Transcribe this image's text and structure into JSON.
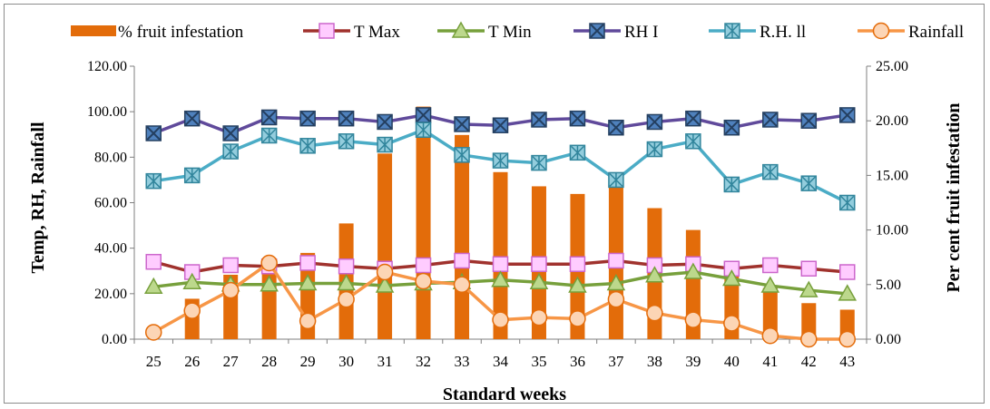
{
  "chart_data": {
    "type": "bar+line",
    "xlabel": "Standard weeks",
    "ylabel_left": "Temp, RH, Rainfall",
    "ylabel_right": "Per cent fruit infestation",
    "ylim_left": [
      0,
      120
    ],
    "ylim_right": [
      0,
      25
    ],
    "y_ticks_left": [
      "0.00",
      "20.00",
      "40.00",
      "60.00",
      "80.00",
      "100.00",
      "120.00"
    ],
    "y_ticks_right": [
      "0.00",
      "5.00",
      "10.00",
      "15.00",
      "20.00",
      "25.00"
    ],
    "grid": false,
    "legend_position": "top",
    "categories": [
      "25",
      "26",
      "27",
      "28",
      "29",
      "30",
      "31",
      "32",
      "33",
      "34",
      "35",
      "36",
      "37",
      "38",
      "39",
      "40",
      "41",
      "42",
      "43"
    ],
    "bars": {
      "name": "% fruit infestation",
      "axis": "right",
      "color": "#e36c0a",
      "values": [
        0,
        3.7,
        5.9,
        7.1,
        7.9,
        10.6,
        17.0,
        21.3,
        18.7,
        15.3,
        14.0,
        13.3,
        14.3,
        12.0,
        10.0,
        6.9,
        4.7,
        3.3,
        2.7
      ]
    },
    "series": [
      {
        "name": "T Max",
        "axis": "left",
        "color": "#a0322d",
        "markerFill": "#ffccff",
        "markerStroke": "#cc66cc",
        "marker": "square",
        "values": [
          34.0,
          29.5,
          32.5,
          32.0,
          33.5,
          32.0,
          31.0,
          32.5,
          34.5,
          33.0,
          33.0,
          33.0,
          34.5,
          32.5,
          33.0,
          31.0,
          32.5,
          31.0,
          29.5
        ]
      },
      {
        "name": "T Min",
        "axis": "left",
        "color": "#77a03c",
        "markerFill": "#bcd88c",
        "markerStroke": "#77a03c",
        "marker": "triangle",
        "values": [
          23.0,
          25.0,
          24.0,
          24.0,
          24.5,
          24.5,
          23.5,
          24.5,
          25.0,
          26.0,
          25.0,
          23.5,
          24.5,
          28.0,
          29.5,
          26.5,
          23.5,
          21.5,
          20.0
        ]
      },
      {
        "name": "RH I",
        "axis": "left",
        "color": "#604a9b",
        "markerFill": "#4f81bd",
        "markerStroke": "#243f60",
        "marker": "xsquare",
        "values": [
          90.5,
          97.0,
          90.5,
          97.5,
          97.0,
          97.0,
          95.5,
          98.5,
          94.5,
          94.0,
          96.5,
          97.0,
          93.0,
          95.5,
          97.0,
          93.0,
          96.5,
          96.0,
          98.5
        ]
      },
      {
        "name": "R.H. ll",
        "axis": "left",
        "color": "#4bacc6",
        "markerFill": "#93cddd",
        "markerStroke": "#31859c",
        "marker": "star",
        "values": [
          69.5,
          72.0,
          82.5,
          89.5,
          85.0,
          87.0,
          85.5,
          92.0,
          81.0,
          78.5,
          77.5,
          82.0,
          70.0,
          83.5,
          87.0,
          68.0,
          73.5,
          68.5,
          60.0
        ]
      },
      {
        "name": "Rainfall",
        "axis": "left",
        "color": "#f79646",
        "markerFill": "#fcd5b5",
        "markerStroke": "#e46c0a",
        "marker": "circle",
        "values": [
          3.0,
          12.5,
          21.5,
          33.5,
          8.0,
          17.5,
          29.5,
          25.5,
          24.0,
          8.5,
          9.5,
          9.0,
          17.5,
          11.5,
          8.5,
          7.0,
          1.5,
          0.0,
          0.0
        ]
      }
    ]
  }
}
